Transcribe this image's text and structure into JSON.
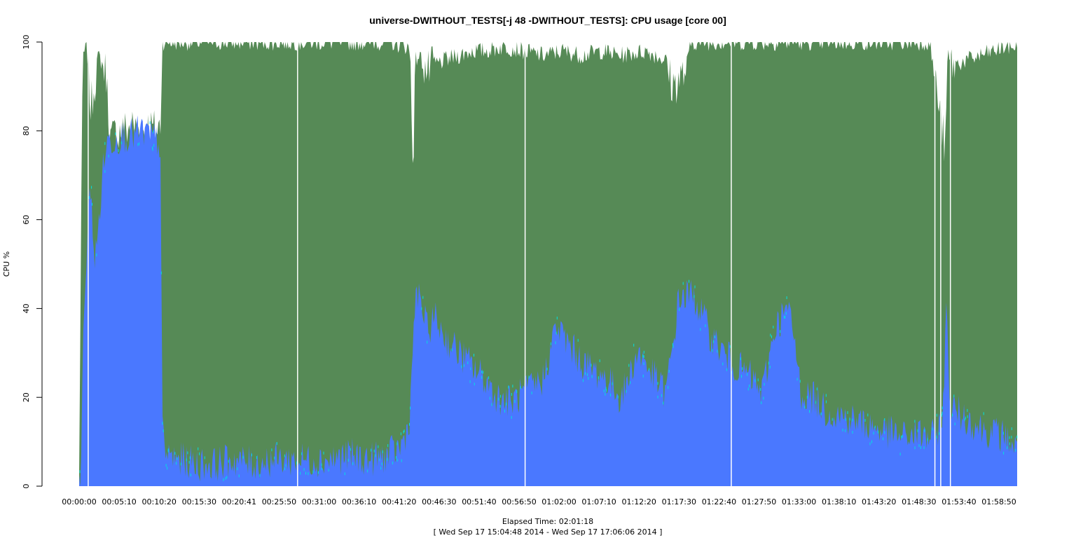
{
  "chart_data": {
    "type": "area",
    "title": "universe-DWITHOUT_TESTS[-j 48  -DWITHOUT_TESTS]: CPU usage [core 00]",
    "ylabel": "CPU %",
    "xlabel": "Elapsed Time: 02:01:18",
    "xlabel_sub": "[ Wed Sep 17 15:04:48 2014 - Wed Sep 17 17:06:06 2014 ]",
    "ylim": [
      0,
      100
    ],
    "yticks": [
      0,
      20,
      40,
      60,
      80,
      100
    ],
    "xlim_seconds": [
      0,
      7278
    ],
    "xticks": [
      "00:00:00",
      "00:05:10",
      "00:10:20",
      "00:15:30",
      "00:20:41",
      "00:25:50",
      "00:31:00",
      "00:36:10",
      "00:41:20",
      "00:46:30",
      "00:51:40",
      "00:56:50",
      "01:02:00",
      "01:07:10",
      "01:12:20",
      "01:17:30",
      "01:22:40",
      "01:27:50",
      "01:33:00",
      "01:38:10",
      "01:43:20",
      "01:48:30",
      "01:53:40",
      "01:58:50"
    ],
    "grid": false,
    "colors": {
      "total": "#568a56",
      "user": "#4a78ff",
      "spike": "#00e0e0"
    },
    "series": [
      {
        "key": "total",
        "x": [
          0,
          15,
          30,
          60,
          90,
          150,
          210,
          240,
          270,
          330,
          420,
          480,
          540,
          600,
          630,
          645,
          660,
          900,
          1500,
          1530,
          1545,
          1560,
          1800,
          2100,
          2400,
          2550,
          2570,
          2590,
          2610,
          2640,
          2700,
          2760,
          2850,
          2950,
          3050,
          3150,
          3300,
          3450,
          3600,
          3750,
          3900,
          4050,
          4200,
          4400,
          4550,
          4600,
          4700,
          4750,
          4850,
          5000,
          5200,
          5400,
          5600,
          5800,
          6000,
          6300,
          6600,
          6650,
          6700,
          6720,
          6740,
          6760,
          6800,
          6900,
          7000,
          7100,
          7200,
          7278
        ],
        "y": [
          2,
          60,
          97,
          99,
          85,
          97,
          93,
          78,
          79,
          80,
          81,
          80,
          81,
          80,
          81,
          100,
          100,
          100,
          100,
          100,
          100,
          100,
          100,
          100,
          100,
          99,
          97,
          72,
          96,
          97,
          93,
          95,
          96,
          97,
          98,
          98,
          99,
          98,
          97,
          98,
          97,
          98,
          97,
          98,
          96,
          90,
          93,
          100,
          100,
          100,
          100,
          100,
          100,
          100,
          100,
          100,
          100,
          90,
          80,
          75,
          98,
          95,
          95,
          96,
          97,
          98,
          99,
          99
        ]
      },
      {
        "key": "user",
        "x": [
          0,
          15,
          30,
          60,
          90,
          120,
          150,
          180,
          210,
          240,
          270,
          330,
          420,
          480,
          540,
          600,
          630,
          645,
          660,
          700,
          750,
          800,
          900,
          1050,
          1200,
          1350,
          1500,
          1650,
          1800,
          1950,
          2100,
          2250,
          2400,
          2500,
          2560,
          2580,
          2600,
          2640,
          2700,
          2760,
          2850,
          2950,
          3050,
          3150,
          3250,
          3350,
          3450,
          3550,
          3600,
          3650,
          3700,
          3800,
          3900,
          4000,
          4100,
          4200,
          4250,
          4300,
          4350,
          4450,
          4550,
          4600,
          4650,
          4700,
          4750,
          4800,
          4900,
          5000,
          5100,
          5200,
          5300,
          5400,
          5450,
          5500,
          5550,
          5600,
          5700,
          5800,
          5900,
          6000,
          6100,
          6200,
          6300,
          6400,
          6500,
          6600,
          6650,
          6700,
          6730,
          6760,
          6800,
          6900,
          7000,
          7100,
          7200,
          7278
        ],
        "y": [
          2,
          5,
          30,
          55,
          68,
          50,
          58,
          70,
          77,
          78,
          78,
          79,
          79,
          80,
          79,
          78,
          77,
          15,
          8,
          7,
          6,
          6,
          5,
          5,
          6,
          5,
          6,
          6,
          6,
          6,
          7,
          6,
          7,
          9,
          14,
          24,
          40,
          43,
          35,
          38,
          33,
          30,
          27,
          24,
          20,
          19,
          21,
          23,
          24,
          30,
          36,
          32,
          28,
          26,
          24,
          20,
          23,
          28,
          30,
          25,
          21,
          30,
          42,
          43,
          43,
          41,
          34,
          30,
          27,
          25,
          21,
          36,
          38,
          40,
          33,
          21,
          20,
          17,
          16,
          15,
          14,
          13,
          12,
          11,
          12,
          11,
          12,
          16,
          40,
          18,
          17,
          15,
          13,
          12,
          11,
          8
        ]
      }
    ],
    "gaps_seconds": [
      70,
      1695,
      3460,
      5060,
      6640,
      6685,
      6760
    ]
  }
}
